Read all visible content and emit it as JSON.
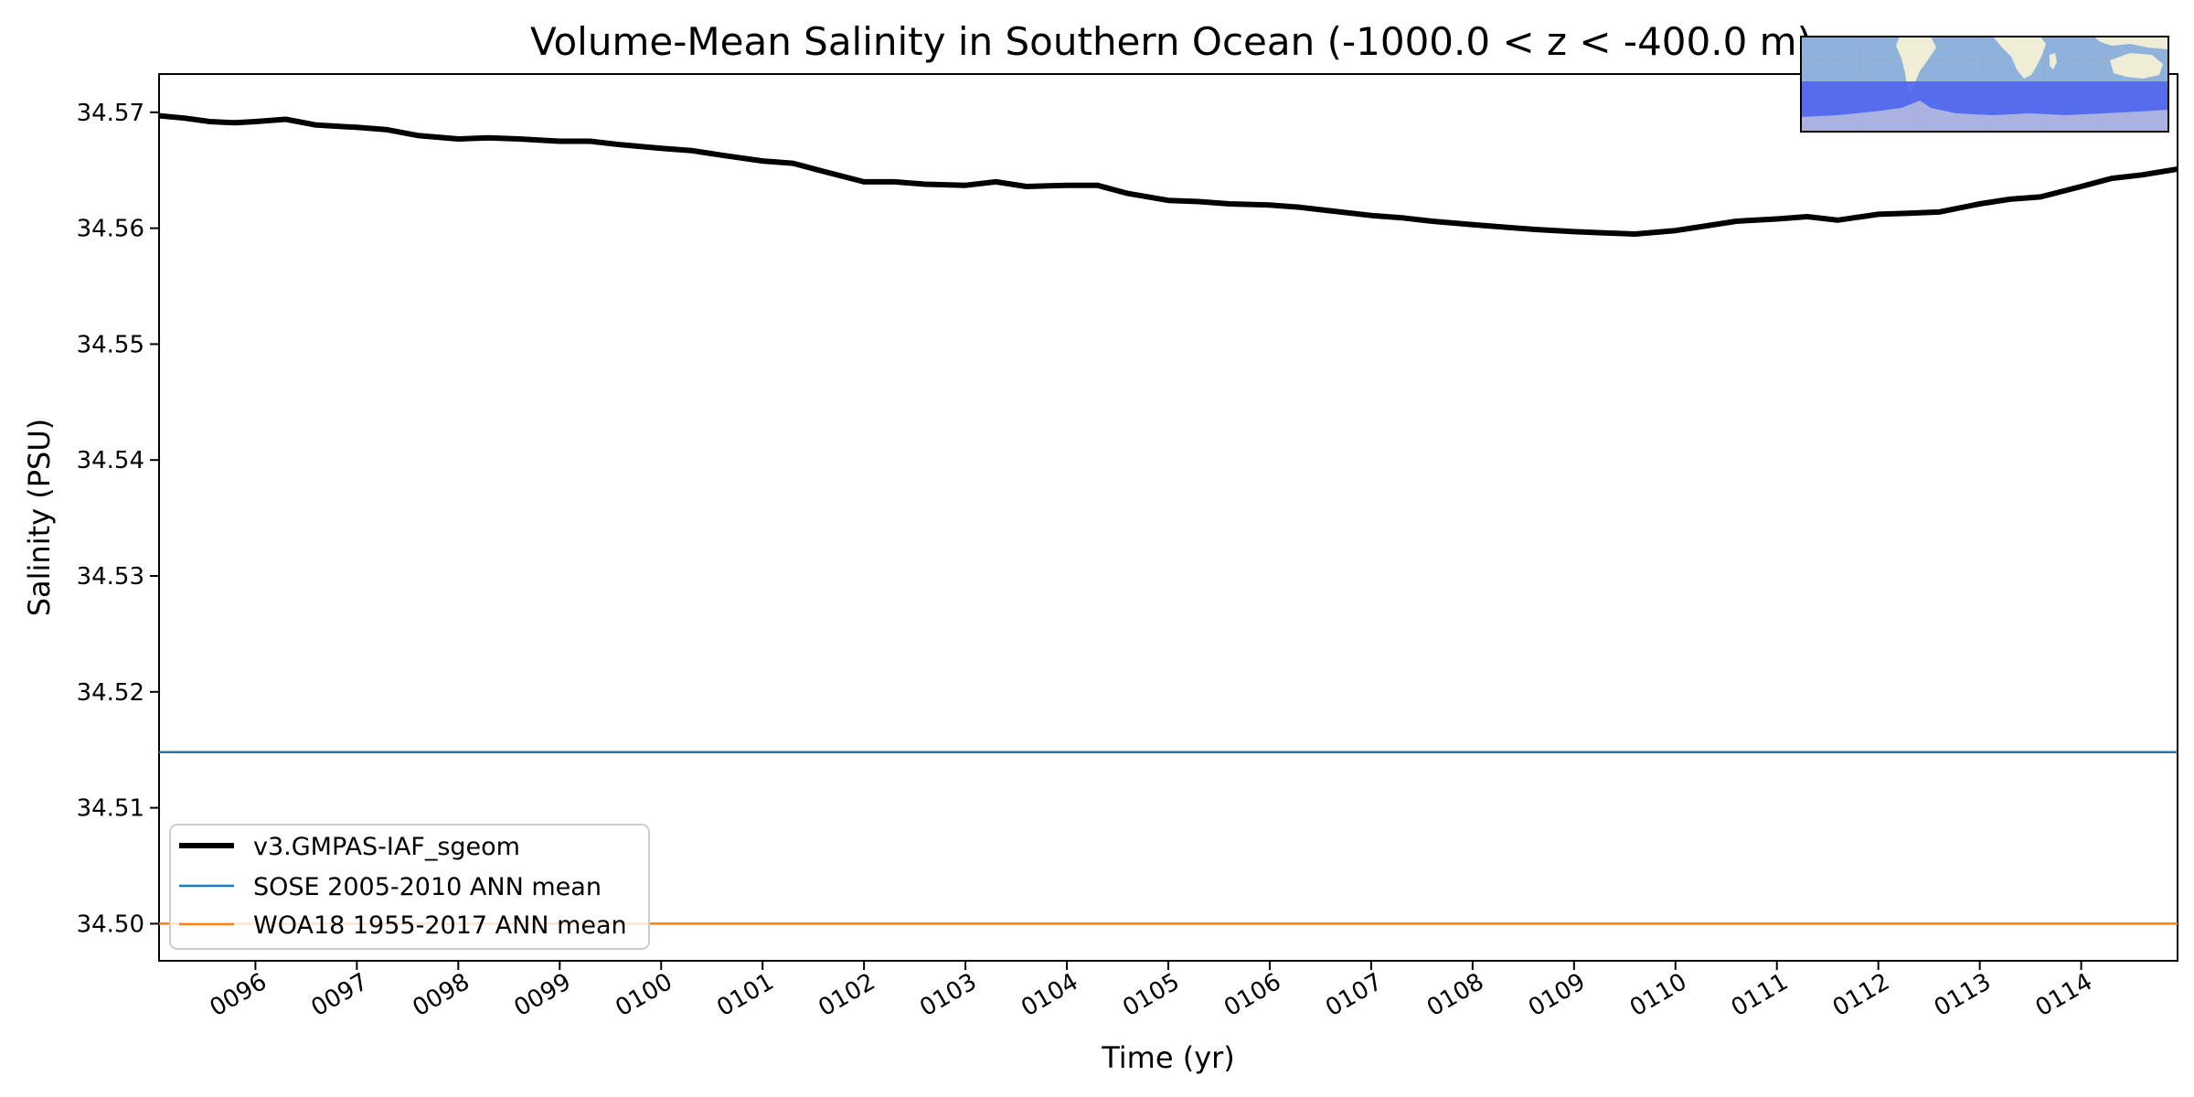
{
  "chart_data": {
    "type": "line",
    "title": "Volume-Mean Salinity in Southern Ocean (-1000.0 < z < -400.0 m)",
    "xlabel": "Time (yr)",
    "ylabel": "Salinity (PSU)",
    "xlim": [
      95.05,
      114.95
    ],
    "ylim": [
      34.4968,
      34.5733
    ],
    "grid": false,
    "legend_position": "lower-left",
    "x_ticks": [
      96,
      97,
      98,
      99,
      100,
      101,
      102,
      103,
      104,
      105,
      106,
      107,
      108,
      109,
      110,
      111,
      112,
      113,
      114
    ],
    "x_tick_labels": [
      "0096",
      "0097",
      "0098",
      "0099",
      "0100",
      "0101",
      "0102",
      "0103",
      "0104",
      "0105",
      "0106",
      "0107",
      "0108",
      "0109",
      "0110",
      "0111",
      "0112",
      "0113",
      "0114"
    ],
    "y_ticks": [
      34.5,
      34.51,
      34.52,
      34.53,
      34.54,
      34.55,
      34.56,
      34.57
    ],
    "y_tick_labels": [
      "34.50",
      "34.51",
      "34.52",
      "34.53",
      "34.54",
      "34.55",
      "34.56",
      "34.57"
    ],
    "series": [
      {
        "name": "v3.GMPAS-IAF_sgeom",
        "color": "#000000",
        "kind": "line",
        "x": [
          95.05,
          95.3,
          95.55,
          95.8,
          96.0,
          96.3,
          96.6,
          97.0,
          97.3,
          97.6,
          98.0,
          98.3,
          98.6,
          99.0,
          99.3,
          99.6,
          100.0,
          100.3,
          100.6,
          101.0,
          101.3,
          101.6,
          102.0,
          102.3,
          102.6,
          103.0,
          103.3,
          103.6,
          104.0,
          104.3,
          104.6,
          105.0,
          105.3,
          105.6,
          106.0,
          106.3,
          106.6,
          107.0,
          107.3,
          107.6,
          108.0,
          108.3,
          108.6,
          109.0,
          109.3,
          109.6,
          110.0,
          110.3,
          110.6,
          111.0,
          111.3,
          111.6,
          112.0,
          112.3,
          112.6,
          113.0,
          113.3,
          113.6,
          114.0,
          114.3,
          114.6,
          114.95
        ],
        "y": [
          34.5697,
          34.5695,
          34.5692,
          34.5691,
          34.5692,
          34.5694,
          34.5689,
          34.5687,
          34.5685,
          34.568,
          34.5677,
          34.5678,
          34.5677,
          34.5675,
          34.5675,
          34.5672,
          34.5669,
          34.5667,
          34.5663,
          34.5658,
          34.5656,
          34.5649,
          34.564,
          34.564,
          34.5638,
          34.5637,
          34.564,
          34.5636,
          34.5637,
          34.5637,
          34.563,
          34.5624,
          34.5623,
          34.5621,
          34.562,
          34.5618,
          34.5615,
          34.5611,
          34.5609,
          34.5606,
          34.5603,
          34.5601,
          34.5599,
          34.5597,
          34.5596,
          34.5595,
          34.5598,
          34.5602,
          34.5606,
          34.5608,
          34.561,
          34.5607,
          34.5612,
          34.5613,
          34.5614,
          34.5621,
          34.5625,
          34.5627,
          34.5636,
          34.5643,
          34.5646,
          34.5651
        ]
      },
      {
        "name": "SOSE 2005-2010 ANN mean",
        "color": "#1f77b4",
        "kind": "hline",
        "value": 34.5148
      },
      {
        "name": "WOA18 1955-2017 ANN mean",
        "color": "#ff7f0e",
        "kind": "hline",
        "value": 34.5
      }
    ]
  },
  "inset_map": {
    "ocean_color": "#8eb2dc",
    "land_color": "#efedd6",
    "region_color": "#4f64ee"
  }
}
